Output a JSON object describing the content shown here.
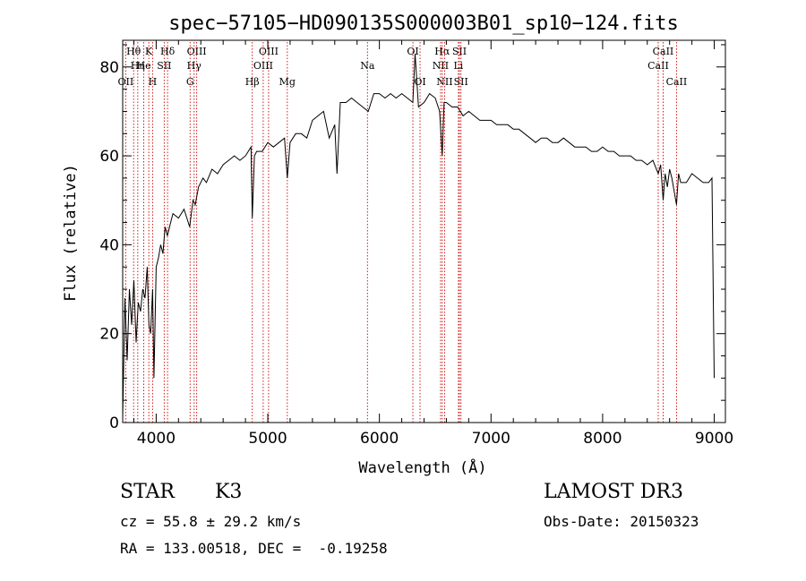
{
  "chart_data": {
    "type": "line",
    "title": "spec−57105−HD090135S000003B01_sp10−124.fits",
    "xlabel": "Wavelength (Å)",
    "ylabel": "Flux (relative)",
    "xlim": [
      3700,
      9100
    ],
    "ylim": [
      0,
      86
    ],
    "xticks": [
      4000,
      5000,
      6000,
      7000,
      8000,
      9000
    ],
    "yticks": [
      0,
      20,
      40,
      60,
      80
    ],
    "series": [
      {
        "x": [
          3700,
          3720,
          3740,
          3760,
          3780,
          3800,
          3820,
          3840,
          3860,
          3880,
          3900,
          3920,
          3935,
          3950,
          3968,
          3980,
          4000,
          4020,
          4040,
          4060,
          4080,
          4100,
          4120,
          4150,
          4200,
          4250,
          4300,
          4330,
          4350,
          4380,
          4420,
          4450,
          4500,
          4550,
          4600,
          4650,
          4700,
          4750,
          4800,
          4850,
          4861,
          4880,
          4900,
          4950,
          5000,
          5050,
          5100,
          5150,
          5175,
          5200,
          5250,
          5300,
          5350,
          5400,
          5450,
          5500,
          5550,
          5600,
          5620,
          5650,
          5700,
          5750,
          5800,
          5850,
          5900,
          5950,
          6000,
          6050,
          6100,
          6150,
          6200,
          6250,
          6300,
          6320,
          6350,
          6400,
          6450,
          6500,
          6540,
          6563,
          6580,
          6600,
          6650,
          6700,
          6750,
          6800,
          6850,
          6900,
          6950,
          7000,
          7050,
          7100,
          7150,
          7200,
          7250,
          7300,
          7350,
          7400,
          7450,
          7500,
          7550,
          7600,
          7650,
          7700,
          7750,
          7800,
          7850,
          7900,
          7950,
          8000,
          8050,
          8100,
          8150,
          8200,
          8250,
          8300,
          8350,
          8400,
          8450,
          8498,
          8520,
          8542,
          8560,
          8580,
          8600,
          8620,
          8662,
          8680,
          8700,
          8750,
          8800,
          8850,
          8900,
          8950,
          8980,
          9000
        ],
        "y": [
          1,
          28,
          14,
          30,
          22,
          32,
          18,
          27,
          25,
          30,
          28,
          35,
          22,
          20,
          30,
          10,
          35,
          37,
          40,
          38,
          44,
          42,
          44,
          47,
          46,
          48,
          44,
          50,
          49,
          53,
          55,
          54,
          57,
          56,
          58,
          59,
          60,
          59,
          60,
          62,
          46,
          60,
          61,
          61,
          63,
          62,
          63,
          64,
          55,
          63,
          65,
          65,
          64,
          68,
          69,
          70,
          64,
          67,
          56,
          72,
          72,
          73,
          72,
          71,
          70,
          74,
          74,
          73,
          74,
          73,
          74,
          73,
          72,
          83,
          71,
          72,
          74,
          73,
          70,
          60,
          72,
          72,
          71,
          71,
          69,
          70,
          69,
          68,
          68,
          68,
          67,
          67,
          67,
          66,
          66,
          65,
          64,
          63,
          64,
          64,
          63,
          63,
          64,
          63,
          62,
          62,
          62,
          61,
          61,
          62,
          61,
          61,
          60,
          60,
          60,
          59,
          59,
          58,
          59,
          56,
          58,
          50,
          56,
          53,
          57,
          55,
          49,
          56,
          54,
          54,
          56,
          55,
          54,
          54,
          55,
          10
        ]
      }
    ],
    "lines": [
      {
        "label": "Hθ",
        "wave": 3798,
        "row": 1
      },
      {
        "label": "OII",
        "wave": 3727,
        "row": 3
      },
      {
        "label": "Hη",
        "wave": 3835,
        "row": 2
      },
      {
        "label": "He",
        "wave": 3889,
        "row": 2
      },
      {
        "label": "K",
        "wave": 3934,
        "row": 1
      },
      {
        "label": "H",
        "wave": 3968,
        "row": 3
      },
      {
        "label": "Hδ",
        "wave": 4102,
        "row": 1
      },
      {
        "label": "SII",
        "wave": 4072,
        "row": 2
      },
      {
        "label": "OIII",
        "wave": 4363,
        "row": 1
      },
      {
        "label": "Hγ",
        "wave": 4340,
        "row": 2
      },
      {
        "label": "G",
        "wave": 4304,
        "row": 3
      },
      {
        "label": "Hβ",
        "wave": 4861,
        "row": 3
      },
      {
        "label": "OIII",
        "wave": 4959,
        "row": 2
      },
      {
        "label": "OIII",
        "wave": 5007,
        "row": 1
      },
      {
        "label": "Mg",
        "wave": 5175,
        "row": 3
      },
      {
        "label": "Na",
        "wave": 5893,
        "row": 2
      },
      {
        "label": "OI",
        "wave": 6300,
        "row": 1
      },
      {
        "label": "OI",
        "wave": 6364,
        "row": 3
      },
      {
        "label": "NII",
        "wave": 6548,
        "row": 2
      },
      {
        "label": "Hα",
        "wave": 6563,
        "row": 1
      },
      {
        "label": "NII",
        "wave": 6584,
        "row": 3
      },
      {
        "label": "SII",
        "wave": 6717,
        "row": 1
      },
      {
        "label": "Li",
        "wave": 6708,
        "row": 2
      },
      {
        "label": "SII",
        "wave": 6731,
        "row": 3
      },
      {
        "label": "CaII",
        "wave": 8498,
        "row": 2
      },
      {
        "label": "CaII",
        "wave": 8542,
        "row": 1
      },
      {
        "label": "CaII",
        "wave": 8662,
        "row": 3
      }
    ],
    "line_color": "#cc0000"
  },
  "info": {
    "object_class": "STAR",
    "subclass": "K3",
    "cz_text": "cz = 55.8 ± 29.2 km/s",
    "radec_text": "RA = 133.00518, DEC =  -0.19258",
    "survey": "LAMOST DR3",
    "obs_date": "Obs-Date: 20150323"
  }
}
